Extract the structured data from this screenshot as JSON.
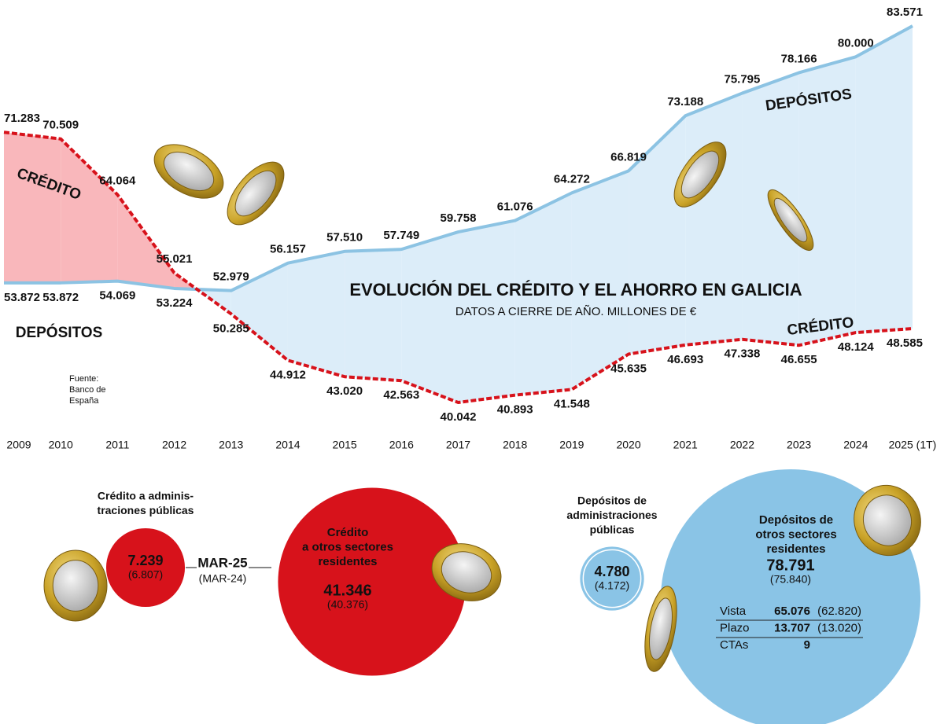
{
  "chart_data": {
    "type": "line",
    "title": "EVOLUCIÓN DEL CRÉDITO Y EL AHORRO EN GALICIA",
    "subtitle": "DATOS A CIERRE DE AÑO. MILLONES DE €",
    "source": [
      "Fuente:",
      "Banco de",
      "España"
    ],
    "grid": true,
    "categories": [
      "2009",
      "2010",
      "2011",
      "2012",
      "2013",
      "2014",
      "2015",
      "2016",
      "2017",
      "2018",
      "2019",
      "2020",
      "2021",
      "2022",
      "2023",
      "2024",
      "2025 (1T)"
    ],
    "series": [
      {
        "name": "DEPÓSITOS",
        "color": "#8cc3e3",
        "fill": "#dcedf9",
        "values": [
          53872,
          53872,
          54069,
          53224,
          52979,
          56157,
          57510,
          57749,
          59758,
          61076,
          64272,
          66819,
          73188,
          75795,
          78166,
          80000,
          83571
        ],
        "value_labels": [
          "53.872",
          "53.872",
          "54.069",
          "53.224",
          "52.979",
          "56.157",
          "57.510",
          "57.749",
          "59.758",
          "61.076",
          "64.272",
          "66.819",
          "73.188",
          "75.795",
          "78.166",
          "80.000",
          "83.571"
        ]
      },
      {
        "name": "CRÉDITO",
        "color": "#d7121b",
        "fill": "#f9b7bb",
        "values": [
          71283,
          70509,
          64064,
          55021,
          50285,
          44912,
          43020,
          42563,
          40042,
          40893,
          41548,
          45635,
          46693,
          47338,
          46655,
          48124,
          48585
        ],
        "value_labels": [
          "71.283",
          "70.509",
          "64.064",
          "55.021",
          "50.285",
          "44.912",
          "43.020",
          "42.563",
          "40.042",
          "40.893",
          "41.548",
          "45.635",
          "46.693",
          "47.338",
          "46.655",
          "48.124",
          "48.585"
        ]
      }
    ],
    "period": "MAR-25",
    "previous_period": "(MAR-24)",
    "bubbles": [
      {
        "name": [
          "Crédito a adminis-",
          "traciones públicas"
        ],
        "value": 7239,
        "value_label": "7.239",
        "previous_label": "(6.807)",
        "color": "#d7121b"
      },
      {
        "name": [
          "Crédito",
          "a otros sectores",
          "residentes"
        ],
        "value": 41346,
        "value_label": "41.346",
        "previous_label": "(40.376)",
        "color": "#d7121b"
      },
      {
        "name": [
          "Depósitos de",
          "administraciones",
          "públicas"
        ],
        "value": 4780,
        "value_label": "4.780",
        "previous_label": "(4.172)",
        "color": "#8ac4e6"
      },
      {
        "name": [
          "Depósitos de",
          "otros sectores",
          "residentes"
        ],
        "value": 78791,
        "value_label": "78.791",
        "previous_label": "(75.840)",
        "color": "#8ac4e6"
      }
    ],
    "breakdown": [
      [
        "Vista",
        "65.076",
        "(62.820)"
      ],
      [
        "Plazo",
        "13.707",
        "(13.020)"
      ],
      [
        "CTAs",
        "9"
      ]
    ]
  }
}
